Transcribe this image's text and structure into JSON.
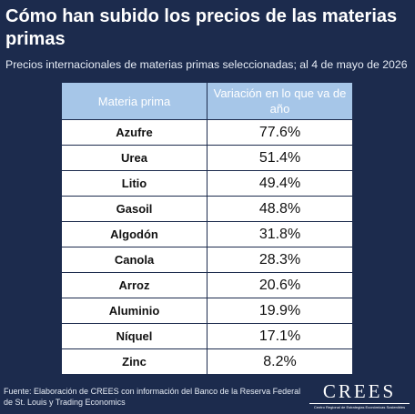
{
  "header": {
    "title": "Cómo han subido los precios de las materias primas",
    "subtitle": "Precios internacionales de materias primas seleccionadas; al 4 de mayo de 2026"
  },
  "table": {
    "columns": [
      "Materia prima",
      "Variación en lo que va de año"
    ],
    "rows": [
      [
        "Azufre",
        "77.6%"
      ],
      [
        "Urea",
        "51.4%"
      ],
      [
        "Litio",
        "49.4%"
      ],
      [
        "Gasoil",
        "48.8%"
      ],
      [
        "Algodón",
        "31.8%"
      ],
      [
        "Canola",
        "28.3%"
      ],
      [
        "Arroz",
        "20.6%"
      ],
      [
        "Aluminio",
        "19.9%"
      ],
      [
        "Níquel",
        "17.1%"
      ],
      [
        "Zinc",
        "8.2%"
      ]
    ]
  },
  "footer": {
    "source": "Fuente: Elaboración de CREES con información del Banco de la Reserva Federal de St. Louis y Trading Economics"
  },
  "logo": {
    "name": "CREES",
    "tagline": "Centro Regional de Estrategias Económicas Sostenibles"
  }
}
